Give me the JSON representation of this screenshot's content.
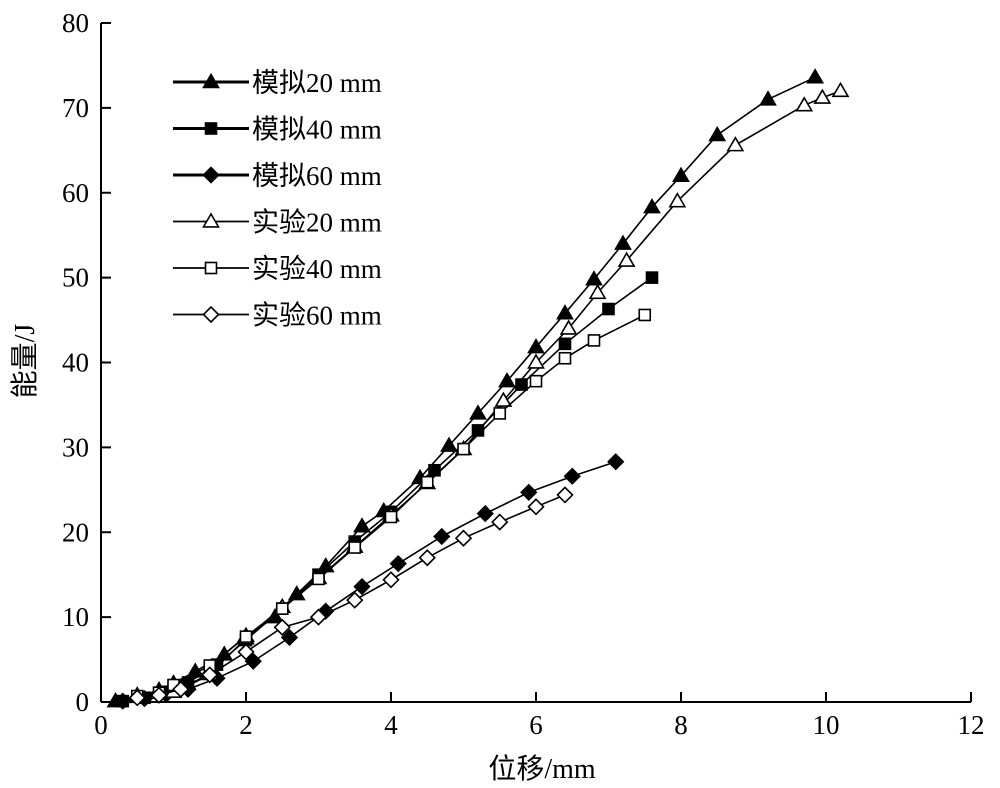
{
  "chart_data": {
    "type": "line",
    "title": "",
    "xlabel": "位移/mm",
    "ylabel": "能量/J",
    "xlim": [
      0,
      12
    ],
    "ylim": [
      0,
      80
    ],
    "xticks": [
      0,
      2,
      4,
      6,
      8,
      10,
      12
    ],
    "yticks": [
      0,
      10,
      20,
      30,
      40,
      50,
      60,
      70,
      80
    ],
    "legend_position": "top-left",
    "series": [
      {
        "name": "模拟20 mm",
        "marker": "triangle-filled",
        "x": [
          0.2,
          0.5,
          0.8,
          1.0,
          1.3,
          1.7,
          2.0,
          2.4,
          2.7,
          3.1,
          3.6,
          3.9,
          4.4,
          4.8,
          5.2,
          5.6,
          6.0,
          6.4,
          6.8,
          7.2,
          7.6,
          8.0,
          8.5,
          9.2,
          9.85
        ],
        "y": [
          0.1,
          0.6,
          1.4,
          2.2,
          3.6,
          5.6,
          7.8,
          10.0,
          12.7,
          16.0,
          20.7,
          22.5,
          26.4,
          30.2,
          34.0,
          37.8,
          41.8,
          45.8,
          49.8,
          54.0,
          58.3,
          62.0,
          66.8,
          71.0,
          73.6
        ]
      },
      {
        "name": "模拟40 mm",
        "marker": "square-filled",
        "x": [
          0.3,
          0.6,
          0.9,
          1.2,
          1.6,
          2.0,
          2.5,
          3.0,
          3.5,
          4.0,
          4.6,
          5.2,
          5.8,
          6.4,
          7.0,
          7.6
        ],
        "y": [
          0.1,
          0.5,
          1.2,
          2.3,
          4.4,
          7.3,
          11.0,
          15.0,
          18.9,
          22.4,
          27.3,
          32.0,
          37.4,
          42.2,
          46.3,
          50.0
        ]
      },
      {
        "name": "模拟60 mm",
        "marker": "diamond-filled",
        "x": [
          0.3,
          0.6,
          0.9,
          1.2,
          1.6,
          2.1,
          2.6,
          3.1,
          3.6,
          4.1,
          4.7,
          5.3,
          5.9,
          6.5,
          7.1
        ],
        "y": [
          0.1,
          0.4,
          0.9,
          1.5,
          2.8,
          4.8,
          7.6,
          10.7,
          13.6,
          16.3,
          19.5,
          22.2,
          24.7,
          26.6,
          28.3
        ]
      },
      {
        "name": "实验20 mm",
        "marker": "triangle-open",
        "x": [
          0.5,
          1.0,
          1.5,
          2.0,
          2.5,
          3.0,
          3.5,
          4.0,
          4.5,
          5.0,
          5.55,
          6.0,
          6.45,
          6.85,
          7.25,
          7.95,
          8.75,
          9.7,
          9.95,
          10.2
        ],
        "y": [
          0.8,
          1.2,
          3.3,
          7.5,
          11.2,
          14.6,
          18.3,
          22.0,
          25.8,
          29.8,
          35.5,
          40.0,
          44.0,
          48.2,
          52.0,
          59.0,
          65.6,
          70.3,
          71.2,
          72.0
        ]
      },
      {
        "name": "实验40 mm",
        "marker": "square-open",
        "x": [
          0.5,
          0.8,
          1.0,
          1.5,
          2.0,
          2.5,
          3.0,
          3.5,
          4.0,
          4.5,
          5.0,
          5.5,
          6.0,
          6.4,
          6.8,
          7.5
        ],
        "y": [
          0.7,
          1.1,
          2.0,
          4.3,
          7.7,
          11.0,
          14.5,
          18.2,
          21.8,
          25.9,
          29.8,
          34.0,
          37.8,
          40.5,
          42.6,
          45.6
        ]
      },
      {
        "name": "实验60 mm",
        "marker": "diamond-open",
        "x": [
          0.5,
          0.8,
          1.1,
          1.5,
          2.0,
          2.5,
          3.0,
          3.5,
          4.0,
          4.5,
          5.0,
          5.5,
          6.0,
          6.4
        ],
        "y": [
          0.5,
          0.8,
          1.5,
          3.2,
          5.9,
          8.8,
          10.0,
          12.0,
          14.4,
          17.0,
          19.3,
          21.2,
          23.0,
          24.4
        ]
      }
    ]
  }
}
